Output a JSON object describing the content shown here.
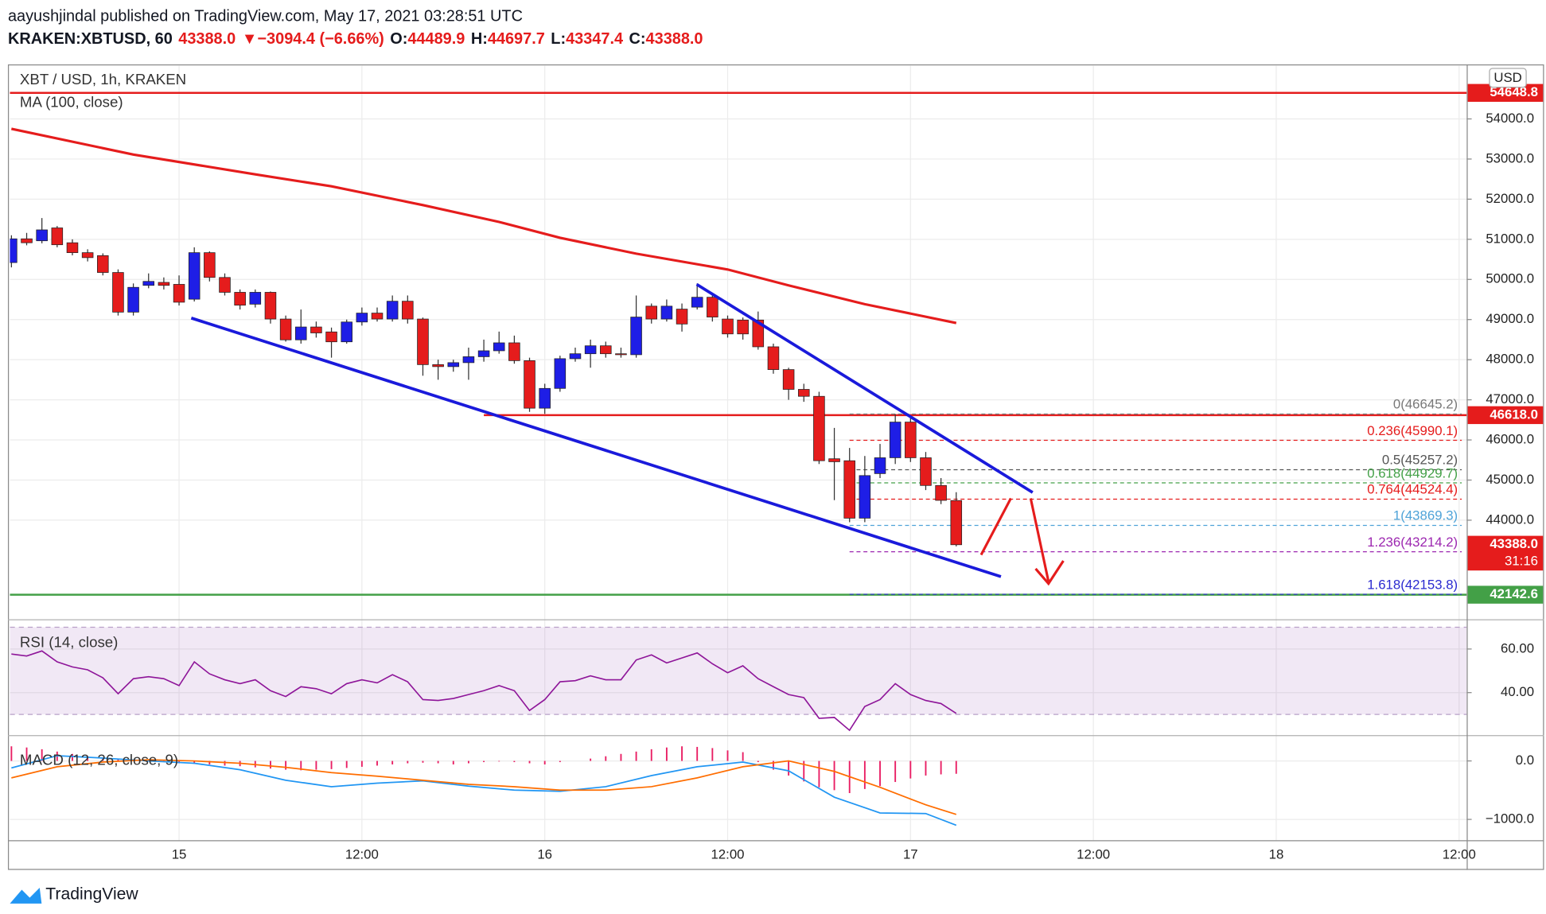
{
  "header": {
    "published": "aayushjindal published on TradingView.com, May 17, 2021 03:28:51 UTC",
    "symbol": "KRAKEN:XBTUSD, 60",
    "last": "43388.0",
    "arrow": "▼",
    "change": "−3094.4 (−6.66%)",
    "o_label": "O:",
    "o": "44489.9",
    "h_label": "H:",
    "h": "44697.7",
    "l_label": "L:",
    "l": "43347.4",
    "c_label": "C:",
    "c": "43388.0"
  },
  "footer": {
    "brand": "TradingView"
  },
  "chart_data": [
    {
      "type": "candlestick",
      "title": "XBT / USD, 1h, KRAKEN",
      "currency": "USD",
      "x": [
        -11,
        -10,
        -9,
        -8,
        -7,
        -6,
        -5,
        -4,
        -3,
        -2,
        -1,
        0,
        1,
        2,
        3,
        4,
        5,
        6,
        7,
        8,
        9,
        10,
        11,
        12,
        13,
        14,
        15,
        16,
        17,
        18,
        19,
        20,
        21,
        22,
        23,
        24,
        25,
        26,
        27,
        28,
        29,
        30,
        31,
        32,
        33,
        34,
        35,
        36,
        37,
        38,
        39,
        40,
        41,
        42,
        43,
        44,
        45,
        46,
        47,
        48,
        49,
        50,
        51
      ],
      "open": [
        50420,
        51012,
        50963,
        51284,
        50914,
        50667,
        50593,
        50173,
        49185,
        49852,
        49926,
        49877,
        49507,
        50667,
        50049,
        49679,
        49383,
        49679,
        49013,
        48494,
        48815,
        48692,
        48445,
        48939,
        49161,
        49013,
        49457,
        49013,
        47877,
        47827,
        47926,
        48074,
        48222,
        48420,
        47976,
        46791,
        47284,
        48025,
        48148,
        48346,
        48148,
        48124,
        49334,
        49013,
        49260,
        49309,
        49556,
        49013,
        48988,
        48988,
        48321,
        47753,
        47260,
        47087,
        45531,
        45482,
        44050,
        45161,
        45556,
        46445,
        45556,
        44865,
        44489.9
      ],
      "high": [
        51100,
        51161,
        51530,
        51330,
        51000,
        50750,
        50650,
        50250,
        49900,
        50150,
        50050,
        50100,
        50800,
        50700,
        50150,
        49750,
        49750,
        49700,
        49100,
        49250,
        48950,
        48800,
        49000,
        49300,
        49300,
        49600,
        49600,
        49050,
        48000,
        48000,
        48300,
        48500,
        48700,
        48600,
        48050,
        47400,
        48100,
        48300,
        48500,
        48450,
        48300,
        49600,
        49400,
        49500,
        49400,
        49900,
        49600,
        49100,
        49050,
        49200,
        48400,
        47800,
        47400,
        47200,
        46300,
        45800,
        45600,
        45900,
        46645.2,
        46550,
        45700,
        45050,
        44697.7
      ],
      "low": [
        50300,
        50850,
        50900,
        50800,
        50600,
        50450,
        50100,
        49100,
        49100,
        49780,
        49750,
        49350,
        49450,
        49950,
        49600,
        49250,
        49300,
        48900,
        48450,
        48400,
        48550,
        48050,
        48400,
        48850,
        48950,
        48950,
        48900,
        47600,
        47500,
        47700,
        47500,
        47950,
        48150,
        47900,
        46700,
        46650,
        47200,
        47950,
        47800,
        48050,
        48050,
        48050,
        48900,
        48950,
        48700,
        49250,
        48950,
        48550,
        48500,
        48250,
        47650,
        47000,
        46950,
        45400,
        44500,
        43950,
        43950,
        45050,
        45400,
        45450,
        44750,
        44400,
        43347.4
      ],
      "close": [
        51012,
        50914,
        51235,
        50864,
        50667,
        50543,
        50173,
        49185,
        49803,
        49951,
        49852,
        49432,
        50667,
        50049,
        49679,
        49358,
        49679,
        49013,
        48494,
        48815,
        48667,
        48445,
        48939,
        49161,
        49013,
        49457,
        49013,
        47877,
        47827,
        47926,
        48074,
        48222,
        48420,
        47976,
        46791,
        47284,
        48025,
        48148,
        48346,
        48148,
        48124,
        49062,
        49013,
        49334,
        48889,
        49556,
        49062,
        48642,
        48642,
        48321,
        47753,
        47260,
        47087,
        45482,
        45457,
        44050,
        45112,
        45556,
        46445,
        45556,
        44865,
        44494,
        43388.0
      ],
      "up_color": "#1e1ee6",
      "down_color": "#e51c1c",
      "series": [
        {
          "name": "MA (100, close)",
          "color": "#e51c1c",
          "x": [
            -11,
            -3,
            5,
            10,
            16,
            21,
            25,
            30,
            36,
            40,
            45,
            51
          ],
          "values": [
            53753,
            53111,
            52617,
            52321,
            51852,
            51432,
            51037,
            50642,
            50247,
            49852,
            49383,
            48914
          ]
        }
      ],
      "levels": {
        "values": [
          54648.8,
          46618.0,
          42142.6
        ],
        "value_labels": [
          "54648.8",
          "46618.0",
          "42142.6"
        ],
        "colors": [
          "#e51c1c",
          "#e51c1c",
          "#43a047"
        ],
        "x_start": [
          null,
          20,
          null
        ]
      },
      "fib": {
        "x_start": 44,
        "values": [
          46645.2,
          45990.1,
          45257.2,
          44929.7,
          44524.4,
          43869.3,
          43214.2,
          42153.8
        ],
        "value_labels": [
          "0(46645.2)",
          "0.236(45990.1)",
          "0.5(45257.2)",
          "0.618(44929.7)",
          "0.764(44524.4)",
          "1(43869.3)",
          "1.236(43214.2)",
          "1.618(42153.8)"
        ],
        "colors": [
          "#787878",
          "#e51c1c",
          "#555555",
          "#43a047",
          "#e51c1c",
          "#4fa3d8",
          "#9c27b0",
          "#2a2ad0"
        ]
      },
      "last_price": {
        "value": 43388.0,
        "label": "43388.0",
        "countdown": "31:16",
        "color": "#e51c1c"
      },
      "xlim": [
        -11.1,
        84.5
      ],
      "ylim": [
        41655,
        55235
      ],
      "xticks": [
        {
          "value": 0,
          "label": "15"
        },
        {
          "value": 12,
          "label": "12:00"
        },
        {
          "value": 24,
          "label": "16"
        },
        {
          "value": 36,
          "label": "12:00"
        },
        {
          "value": 48,
          "label": "17"
        },
        {
          "value": 60,
          "label": "12:00"
        },
        {
          "value": 72,
          "label": "18"
        },
        {
          "value": 84,
          "label": "12:00"
        }
      ],
      "yticks": [
        {
          "value": 54000,
          "label": "54000.0"
        },
        {
          "value": 53000,
          "label": "53000.0"
        },
        {
          "value": 52000,
          "label": "52000.0"
        },
        {
          "value": 51000,
          "label": "51000.0"
        },
        {
          "value": 50000,
          "label": "50000.0"
        },
        {
          "value": 49000,
          "label": "49000.0"
        },
        {
          "value": 48000,
          "label": "48000.0"
        },
        {
          "value": 47000,
          "label": "47000.0"
        },
        {
          "value": 46000,
          "label": "46000.0"
        },
        {
          "value": 45000,
          "label": "45000.0"
        },
        {
          "value": 44000,
          "label": "44000.0"
        }
      ],
      "grid": true
    },
    {
      "type": "line",
      "title": "RSI (14, close)",
      "x": [
        -11,
        -10,
        -9,
        -8,
        -7,
        -6,
        -5,
        -4,
        -3,
        -2,
        -1,
        0,
        1,
        2,
        3,
        4,
        5,
        6,
        7,
        8,
        9,
        10,
        11,
        12,
        13,
        14,
        15,
        16,
        17,
        18,
        19,
        20,
        21,
        22,
        23,
        24,
        25,
        26,
        27,
        28,
        29,
        30,
        31,
        32,
        33,
        34,
        35,
        36,
        37,
        38,
        39,
        40,
        41,
        42,
        43,
        44,
        45,
        46,
        47,
        48,
        49,
        50,
        51
      ],
      "series": [
        {
          "color": "#8e1599",
          "values": [
            57.7,
            56.8,
            59.1,
            54.1,
            51.8,
            50.5,
            46.8,
            39.5,
            46.4,
            47.3,
            46.4,
            43.2,
            54.1,
            48.6,
            45.9,
            44.1,
            45.9,
            40.9,
            38.2,
            42.7,
            41.8,
            39.5,
            44.1,
            45.9,
            44.5,
            48.2,
            45.0,
            36.8,
            36.4,
            37.3,
            39.1,
            40.9,
            43.2,
            40.9,
            31.8,
            36.8,
            45.0,
            45.5,
            47.7,
            45.9,
            45.9,
            55.0,
            57.3,
            53.6,
            55.9,
            58.2,
            53.2,
            49.1,
            52.3,
            46.4,
            42.7,
            39.1,
            37.7,
            28.2,
            28.6,
            22.7,
            33.6,
            36.8,
            44.1,
            39.1,
            36.4,
            35.0,
            30.5
          ]
        }
      ],
      "band": [
        30,
        70
      ],
      "band_color": "#9b59b6",
      "ylim": [
        22.3,
        72.3
      ],
      "yticks": [
        {
          "value": 60,
          "label": "60.00"
        },
        {
          "value": 40,
          "label": "40.00"
        }
      ]
    },
    {
      "type": "macd",
      "title": "MACD (12, 26, close, 9)",
      "series": [
        {
          "color": "#2196f3",
          "x": [
            -11,
            -8,
            -5,
            -2,
            1,
            4,
            7,
            10,
            13,
            16,
            19,
            22,
            25,
            28,
            31,
            34,
            37,
            40,
            43,
            46,
            49,
            51
          ],
          "values": [
            -120,
            90,
            50,
            0,
            -40,
            -150,
            -330,
            -440,
            -380,
            -340,
            -430,
            -500,
            -520,
            -440,
            -250,
            -100,
            -20,
            -170,
            -620,
            -890,
            -900,
            -1100
          ]
        },
        {
          "color": "#ff6d00",
          "x": [
            -11,
            -8,
            -5,
            -2,
            1,
            4,
            7,
            10,
            13,
            16,
            19,
            22,
            25,
            28,
            31,
            34,
            37,
            40,
            43,
            46,
            49,
            51
          ],
          "values": [
            -290,
            -100,
            -20,
            20,
            0,
            -40,
            -110,
            -200,
            -260,
            -330,
            -400,
            -440,
            -500,
            -500,
            -440,
            -290,
            -100,
            0,
            -180,
            -450,
            -750,
            -915
          ]
        }
      ],
      "histogram": {
        "color": "#e91e63",
        "x": [
          -11,
          -10,
          -9,
          -8,
          -7,
          -6,
          -5,
          -4,
          -3,
          -2,
          -1,
          0,
          1,
          2,
          3,
          4,
          5,
          6,
          7,
          8,
          9,
          10,
          11,
          12,
          13,
          14,
          15,
          16,
          17,
          18,
          19,
          20,
          21,
          22,
          23,
          24,
          25,
          26,
          27,
          28,
          29,
          30,
          31,
          32,
          33,
          34,
          35,
          36,
          37,
          38,
          39,
          40,
          41,
          42,
          43,
          44,
          45,
          46,
          47,
          48,
          49,
          50,
          51
        ],
        "values": [
          250,
          230,
          200,
          160,
          120,
          80,
          50,
          30,
          10,
          -10,
          -20,
          -40,
          -50,
          -60,
          -80,
          -90,
          -110,
          -130,
          -150,
          -160,
          -150,
          -140,
          -120,
          -100,
          -80,
          -60,
          -40,
          -30,
          -40,
          -60,
          -40,
          -20,
          -10,
          -20,
          -40,
          -60,
          -20,
          0,
          40,
          80,
          120,
          160,
          200,
          230,
          250,
          240,
          220,
          180,
          150,
          -20,
          -150,
          -250,
          -350,
          -450,
          -500,
          -550,
          -480,
          -430,
          -360,
          -300,
          -250,
          -230,
          -220
        ]
      },
      "ylim": [
        -1220,
        390
      ],
      "yticks": [
        {
          "value": 0,
          "label": "0.0"
        },
        {
          "value": -1000,
          "label": "−1000.0"
        }
      ]
    }
  ]
}
